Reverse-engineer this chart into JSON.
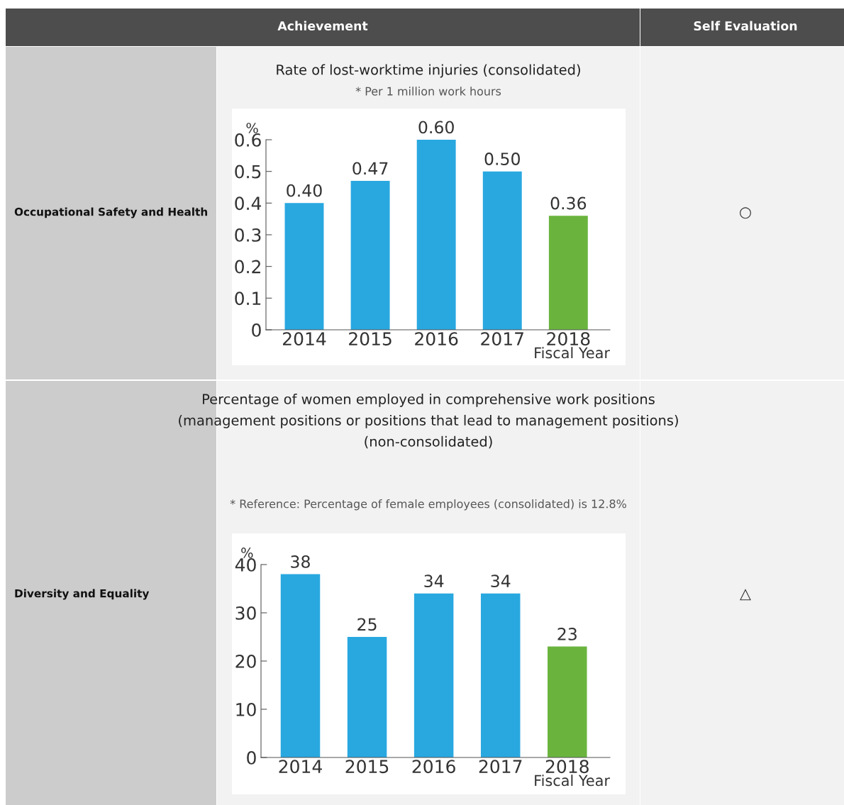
{
  "chart_data": [
    {
      "type": "bar",
      "title": "Rate of lost-worktime injuries (consolidated)",
      "subtitle": "* Per 1 million work hours",
      "ylabel": "%",
      "xlabel": "Fiscal Year",
      "categories": [
        "2014",
        "2015",
        "2016",
        "2017",
        "2018"
      ],
      "values": [
        0.4,
        0.47,
        0.6,
        0.5,
        0.36
      ],
      "colors": [
        "#29a8e0",
        "#29a8e0",
        "#29a8e0",
        "#29a8e0",
        "#6ab43e"
      ],
      "value_labels": [
        "0.40",
        "0.47",
        "0.60",
        "0.50",
        "0.36"
      ],
      "ylim": [
        0,
        0.6
      ],
      "yticks": [
        {
          "value": 0,
          "label": "0"
        },
        0.1,
        0.2,
        0.3,
        0.4,
        0.5,
        0.6
      ],
      "annotations": [
        "Achievement",
        "Self Evaluation",
        "Occupational Safety and Health",
        "○"
      ]
    },
    {
      "type": "bar",
      "title": "Percentage of women employed in comprehensive work positions (management positions or positions that lead to management positions) (non-consolidated)",
      "subtitle": "* Reference: Percentage of female employees (consolidated) is 12.8%",
      "ylabel": "%",
      "xlabel": "Fiscal Year",
      "categories": [
        "2014",
        "2015",
        "2016",
        "2017",
        "2018"
      ],
      "values": [
        38,
        25,
        34,
        34,
        23
      ],
      "colors": [
        "#29a8e0",
        "#29a8e0",
        "#29a8e0",
        "#29a8e0",
        "#6ab43e"
      ],
      "data_labels": true,
      "ylim": [
        0,
        40
      ],
      "yticks": [
        0,
        10,
        20,
        30,
        40
      ],
      "annotations": [
        "Diversity and Equality",
        "△"
      ]
    }
  ]
}
